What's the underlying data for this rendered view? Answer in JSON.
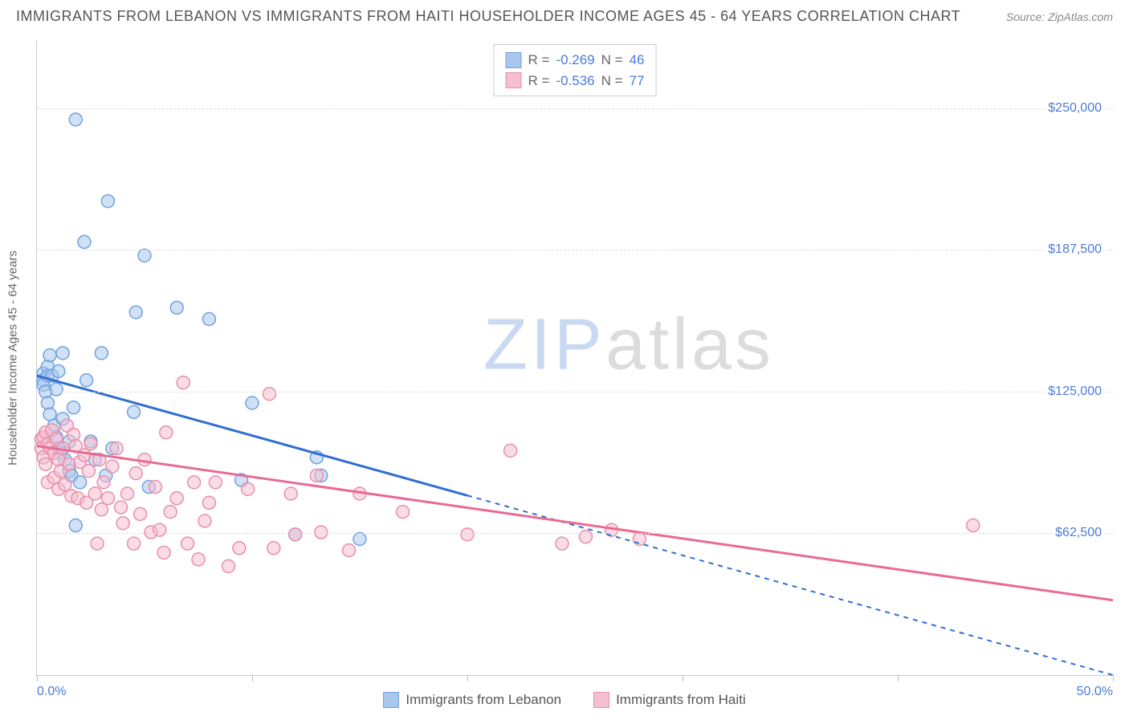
{
  "title": "IMMIGRANTS FROM LEBANON VS IMMIGRANTS FROM HAITI HOUSEHOLDER INCOME AGES 45 - 64 YEARS CORRELATION CHART",
  "source_label": "Source: ",
  "source_value": "ZipAtlas.com",
  "y_axis_label": "Householder Income Ages 45 - 64 years",
  "watermark_a": "ZIP",
  "watermark_b": "atlas",
  "chart": {
    "type": "scatter",
    "xlim": [
      0,
      50
    ],
    "ylim": [
      0,
      280000
    ],
    "x_ticks": [
      0,
      10,
      20,
      30,
      40,
      50
    ],
    "x_tick_labels": [
      "0.0%",
      "",
      "",
      "",
      "",
      "50.0%"
    ],
    "y_grid": [
      62500,
      125000,
      187500,
      250000
    ],
    "y_grid_labels": [
      "$62,500",
      "$125,000",
      "$187,500",
      "$250,000"
    ],
    "background_color": "#ffffff",
    "grid_color": "#dddddd",
    "axis_color": "#cccccc",
    "tick_label_color": "#4a7bd8",
    "series": [
      {
        "name": "Immigrants from Lebanon",
        "color_fill": "#a9c7ec",
        "color_stroke": "#6fa3e0",
        "line_color": "#2f6fd0",
        "line_solid_until_x": 20,
        "marker_radius": 8,
        "marker_opacity": 0.55,
        "R": "-0.269",
        "N": "46",
        "regression": {
          "x1": 0,
          "y1": 132000,
          "x2": 50,
          "y2": 0
        },
        "points": [
          [
            0.3,
            133000
          ],
          [
            0.3,
            130000
          ],
          [
            0.3,
            128000
          ],
          [
            0.4,
            125000
          ],
          [
            0.5,
            136000
          ],
          [
            0.5,
            132000
          ],
          [
            0.5,
            120000
          ],
          [
            0.6,
            141000
          ],
          [
            0.6,
            115000
          ],
          [
            0.7,
            132000
          ],
          [
            0.8,
            110000
          ],
          [
            0.9,
            126000
          ],
          [
            0.9,
            105000
          ],
          [
            1.0,
            134000
          ],
          [
            1.0,
            100000
          ],
          [
            1.1,
            98000
          ],
          [
            1.2,
            142000
          ],
          [
            1.2,
            113000
          ],
          [
            1.3,
            95000
          ],
          [
            1.5,
            103000
          ],
          [
            1.5,
            90000
          ],
          [
            1.6,
            88000
          ],
          [
            1.7,
            118000
          ],
          [
            1.8,
            66000
          ],
          [
            1.8,
            245000
          ],
          [
            2.0,
            85000
          ],
          [
            2.2,
            191000
          ],
          [
            2.3,
            130000
          ],
          [
            2.5,
            103000
          ],
          [
            2.7,
            95000
          ],
          [
            3.0,
            142000
          ],
          [
            3.2,
            88000
          ],
          [
            3.3,
            209000
          ],
          [
            3.5,
            100000
          ],
          [
            4.5,
            116000
          ],
          [
            4.6,
            160000
          ],
          [
            5.0,
            185000
          ],
          [
            5.2,
            83000
          ],
          [
            6.5,
            162000
          ],
          [
            8.0,
            157000
          ],
          [
            9.5,
            86000
          ],
          [
            10.0,
            120000
          ],
          [
            12.0,
            62000
          ],
          [
            13.0,
            96000
          ],
          [
            13.2,
            88000
          ],
          [
            15.0,
            60000
          ]
        ]
      },
      {
        "name": "Immigrants from Haiti",
        "color_fill": "#f4c0cf",
        "color_stroke": "#e98fab",
        "line_color": "#e86b93",
        "line_solid_until_x": 50,
        "marker_radius": 8,
        "marker_opacity": 0.55,
        "R": "-0.536",
        "N": "77",
        "regression": {
          "x1": 0,
          "y1": 101000,
          "x2": 50,
          "y2": 33000
        },
        "points": [
          [
            0.2,
            104000
          ],
          [
            0.2,
            100000
          ],
          [
            0.3,
            105000
          ],
          [
            0.3,
            96000
          ],
          [
            0.4,
            107000
          ],
          [
            0.4,
            93000
          ],
          [
            0.5,
            102000
          ],
          [
            0.5,
            85000
          ],
          [
            0.6,
            100000
          ],
          [
            0.7,
            108000
          ],
          [
            0.8,
            98000
          ],
          [
            0.8,
            87000
          ],
          [
            0.9,
            104000
          ],
          [
            1.0,
            95000
          ],
          [
            1.0,
            82000
          ],
          [
            1.1,
            90000
          ],
          [
            1.2,
            100000
          ],
          [
            1.3,
            84000
          ],
          [
            1.4,
            110000
          ],
          [
            1.5,
            93000
          ],
          [
            1.6,
            79000
          ],
          [
            1.7,
            106000
          ],
          [
            1.8,
            101000
          ],
          [
            1.9,
            78000
          ],
          [
            2.0,
            94000
          ],
          [
            2.2,
            97000
          ],
          [
            2.3,
            76000
          ],
          [
            2.4,
            90000
          ],
          [
            2.5,
            102000
          ],
          [
            2.7,
            80000
          ],
          [
            2.8,
            58000
          ],
          [
            2.9,
            95000
          ],
          [
            3.0,
            73000
          ],
          [
            3.1,
            85000
          ],
          [
            3.3,
            78000
          ],
          [
            3.5,
            92000
          ],
          [
            3.7,
            100000
          ],
          [
            3.9,
            74000
          ],
          [
            4.0,
            67000
          ],
          [
            4.2,
            80000
          ],
          [
            4.5,
            58000
          ],
          [
            4.6,
            89000
          ],
          [
            4.8,
            71000
          ],
          [
            5.0,
            95000
          ],
          [
            5.3,
            63000
          ],
          [
            5.5,
            83000
          ],
          [
            5.7,
            64000
          ],
          [
            5.9,
            54000
          ],
          [
            6.0,
            107000
          ],
          [
            6.2,
            72000
          ],
          [
            6.5,
            78000
          ],
          [
            6.8,
            129000
          ],
          [
            7.0,
            58000
          ],
          [
            7.3,
            85000
          ],
          [
            7.5,
            51000
          ],
          [
            7.8,
            68000
          ],
          [
            8.0,
            76000
          ],
          [
            8.3,
            85000
          ],
          [
            8.9,
            48000
          ],
          [
            9.4,
            56000
          ],
          [
            9.8,
            82000
          ],
          [
            10.8,
            124000
          ],
          [
            11.0,
            56000
          ],
          [
            11.8,
            80000
          ],
          [
            12.0,
            62000
          ],
          [
            13.0,
            88000
          ],
          [
            13.2,
            63000
          ],
          [
            14.5,
            55000
          ],
          [
            15.0,
            80000
          ],
          [
            17.0,
            72000
          ],
          [
            20.0,
            62000
          ],
          [
            22.0,
            99000
          ],
          [
            24.4,
            58000
          ],
          [
            25.5,
            61000
          ],
          [
            26.7,
            64000
          ],
          [
            28.0,
            60000
          ],
          [
            43.5,
            66000
          ]
        ]
      }
    ]
  },
  "legend_labels": {
    "r_prefix": "R = ",
    "n_prefix": "   N = "
  }
}
